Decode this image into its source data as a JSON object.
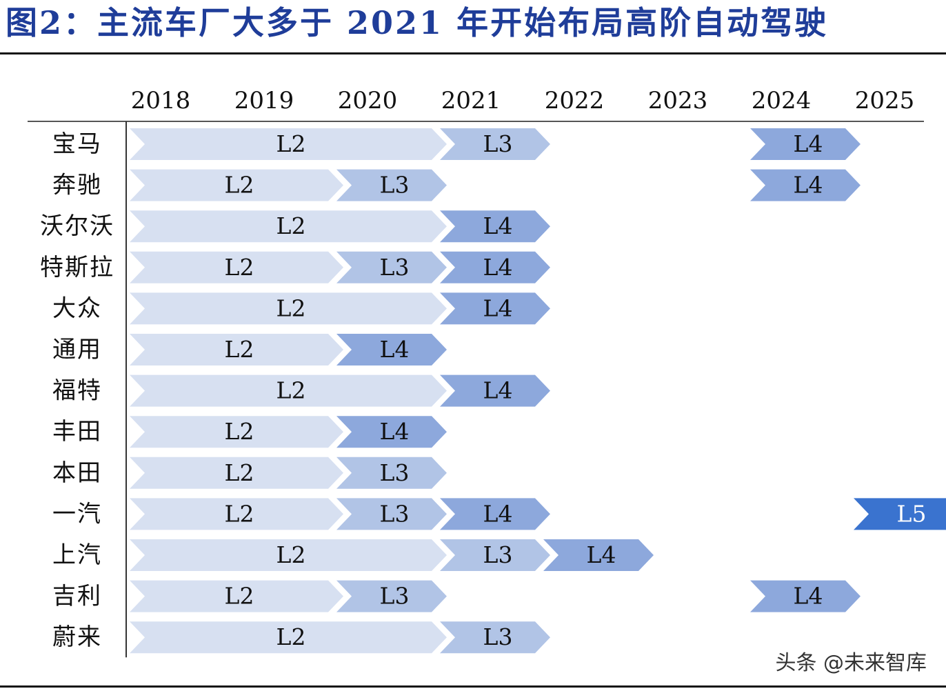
{
  "title": "图2：主流车厂大多于 2021 年开始布局高阶自动驾驶",
  "watermark": "头条 @未来智库",
  "colors": {
    "title": "#1f3d99",
    "L2": "#d7e0f1",
    "L3": "#b1c4e6",
    "L4": "#8da8dc",
    "L5": "#3a73cf"
  },
  "chart_data": {
    "type": "timeline",
    "years": [
      "2018",
      "2019",
      "2020",
      "2021",
      "2022",
      "2023",
      "2024",
      "2025"
    ],
    "rows": [
      {
        "name": "宝马",
        "segments": [
          {
            "level": "L2",
            "start": 2018,
            "end": 2020
          },
          {
            "level": "L3",
            "start": 2021,
            "end": 2021
          },
          {
            "level": "L4",
            "start": 2024,
            "end": 2024
          }
        ]
      },
      {
        "name": "奔驰",
        "segments": [
          {
            "level": "L2",
            "start": 2018,
            "end": 2019
          },
          {
            "level": "L3",
            "start": 2020,
            "end": 2020
          },
          {
            "level": "L4",
            "start": 2024,
            "end": 2024
          }
        ]
      },
      {
        "name": "沃尔沃",
        "segments": [
          {
            "level": "L2",
            "start": 2018,
            "end": 2020
          },
          {
            "level": "L4",
            "start": 2021,
            "end": 2021
          }
        ]
      },
      {
        "name": "特斯拉",
        "segments": [
          {
            "level": "L2",
            "start": 2018,
            "end": 2019
          },
          {
            "level": "L3",
            "start": 2020,
            "end": 2020
          },
          {
            "level": "L4",
            "start": 2021,
            "end": 2021
          }
        ]
      },
      {
        "name": "大众",
        "segments": [
          {
            "level": "L2",
            "start": 2018,
            "end": 2020
          },
          {
            "level": "L4",
            "start": 2021,
            "end": 2021
          }
        ]
      },
      {
        "name": "通用",
        "segments": [
          {
            "level": "L2",
            "start": 2018,
            "end": 2019
          },
          {
            "level": "L4",
            "start": 2020,
            "end": 2020
          }
        ]
      },
      {
        "name": "福特",
        "segments": [
          {
            "level": "L2",
            "start": 2018,
            "end": 2020
          },
          {
            "level": "L4",
            "start": 2021,
            "end": 2021
          }
        ]
      },
      {
        "name": "丰田",
        "segments": [
          {
            "level": "L2",
            "start": 2018,
            "end": 2019
          },
          {
            "level": "L4",
            "start": 2020,
            "end": 2020
          }
        ]
      },
      {
        "name": "本田",
        "segments": [
          {
            "level": "L2",
            "start": 2018,
            "end": 2019
          },
          {
            "level": "L3",
            "start": 2020,
            "end": 2020
          }
        ]
      },
      {
        "name": "一汽",
        "segments": [
          {
            "level": "L2",
            "start": 2018,
            "end": 2019
          },
          {
            "level": "L3",
            "start": 2020,
            "end": 2020
          },
          {
            "level": "L4",
            "start": 2021,
            "end": 2021
          },
          {
            "level": "L5",
            "start": 2025,
            "end": 2025
          }
        ]
      },
      {
        "name": "上汽",
        "segments": [
          {
            "level": "L2",
            "start": 2018,
            "end": 2020
          },
          {
            "level": "L3",
            "start": 2021,
            "end": 2021
          },
          {
            "level": "L4",
            "start": 2022,
            "end": 2022
          }
        ]
      },
      {
        "name": "吉利",
        "segments": [
          {
            "level": "L2",
            "start": 2018,
            "end": 2019
          },
          {
            "level": "L3",
            "start": 2020,
            "end": 2020
          },
          {
            "level": "L4",
            "start": 2024,
            "end": 2024
          }
        ]
      },
      {
        "name": "蔚来",
        "segments": [
          {
            "level": "L2",
            "start": 2018,
            "end": 2020
          },
          {
            "level": "L3",
            "start": 2021,
            "end": 2021
          }
        ]
      }
    ]
  }
}
